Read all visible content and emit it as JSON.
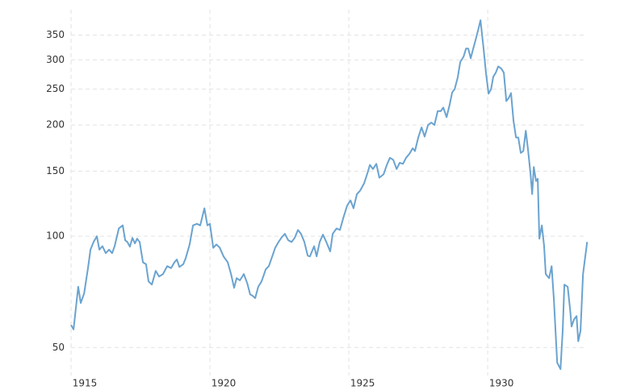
{
  "chart_data": {
    "type": "line",
    "log_scale": true,
    "grid": true,
    "x": [
      1915.0,
      1915.09,
      1915.26,
      1915.35,
      1915.47,
      1915.61,
      1915.7,
      1915.81,
      1915.93,
      1916.02,
      1916.13,
      1916.25,
      1916.37,
      1916.48,
      1916.57,
      1916.72,
      1916.86,
      1916.95,
      1917.03,
      1917.12,
      1917.21,
      1917.3,
      1917.38,
      1917.47,
      1917.59,
      1917.7,
      1917.79,
      1917.91,
      1918.05,
      1918.17,
      1918.31,
      1918.46,
      1918.6,
      1918.72,
      1918.81,
      1918.9,
      1919.04,
      1919.13,
      1919.27,
      1919.39,
      1919.53,
      1919.65,
      1919.8,
      1919.91,
      1920.0,
      1920.12,
      1920.23,
      1920.35,
      1920.49,
      1920.64,
      1920.76,
      1920.87,
      1920.96,
      1921.08,
      1921.22,
      1921.34,
      1921.45,
      1921.54,
      1921.63,
      1921.74,
      1921.86,
      1922.01,
      1922.12,
      1922.24,
      1922.35,
      1922.47,
      1922.59,
      1922.7,
      1922.82,
      1922.94,
      1923.05,
      1923.17,
      1923.28,
      1923.4,
      1923.52,
      1923.6,
      1923.75,
      1923.84,
      1923.95,
      1924.07,
      1924.19,
      1924.33,
      1924.42,
      1924.56,
      1924.68,
      1924.8,
      1924.94,
      1925.06,
      1925.17,
      1925.29,
      1925.41,
      1925.55,
      1925.67,
      1925.76,
      1925.87,
      1925.99,
      1926.1,
      1926.25,
      1926.37,
      1926.48,
      1926.6,
      1926.72,
      1926.83,
      1926.95,
      1927.06,
      1927.18,
      1927.3,
      1927.38,
      1927.5,
      1927.62,
      1927.73,
      1927.85,
      1927.97,
      1928.08,
      1928.2,
      1928.31,
      1928.4,
      1928.52,
      1928.63,
      1928.72,
      1928.81,
      1928.92,
      1929.01,
      1929.13,
      1929.22,
      1929.3,
      1929.39,
      1929.48,
      1929.56,
      1929.65,
      1929.74,
      1929.85,
      1929.94,
      1930.03,
      1930.12,
      1930.2,
      1930.29,
      1930.38,
      1930.49,
      1930.58,
      1930.67,
      1930.76,
      1930.84,
      1930.93,
      1931.02,
      1931.1,
      1931.19,
      1931.28,
      1931.37,
      1931.45,
      1931.54,
      1931.6,
      1931.66,
      1931.74,
      1931.8,
      1931.86,
      1931.95,
      1932.03,
      1932.09,
      1932.21,
      1932.3,
      1932.38,
      1932.5,
      1932.62,
      1932.7,
      1932.76,
      1932.88,
      1932.97,
      1933.02,
      1933.11,
      1933.2,
      1933.26,
      1933.34,
      1933.43,
      1933.58
    ],
    "series": [
      {
        "color": "#6aa3d0",
        "values": [
          57.5,
          56,
          73,
          66,
          70,
          82,
          92,
          96.5,
          100,
          92,
          94,
          90,
          92,
          90,
          94,
          105,
          107,
          97.5,
          96.5,
          93.7,
          99,
          95.6,
          98.5,
          96.5,
          85,
          84,
          75.5,
          74,
          80.6,
          77.8,
          79,
          83,
          82,
          85,
          86.5,
          82.6,
          84,
          87.3,
          95,
          107,
          108,
          107,
          119,
          107,
          108,
          93,
          95,
          93.2,
          88.2,
          85,
          79,
          72.5,
          77,
          76,
          79,
          74.7,
          69.6,
          69,
          68,
          73,
          75.5,
          81.4,
          83,
          88,
          93,
          96.5,
          99.5,
          101.5,
          97.5,
          96.5,
          99,
          104,
          101.5,
          96.5,
          88.6,
          88.2,
          94,
          88.2,
          96.5,
          101,
          96.5,
          91,
          101.5,
          105,
          104,
          112,
          121,
          125,
          119,
          130,
          133,
          139,
          148,
          156,
          152,
          157,
          144,
          147,
          156,
          163,
          161,
          152,
          158,
          157,
          163,
          167,
          173,
          170,
          185,
          197,
          186,
          200,
          203,
          200,
          218,
          218,
          223,
          210,
          227,
          245,
          250,
          269,
          296,
          306,
          322,
          322,
          303,
          322,
          339,
          360,
          384,
          322,
          275,
          243,
          250,
          270,
          277,
          288,
          284,
          277,
          232,
          237,
          244,
          205,
          185,
          185,
          168,
          170,
          193,
          172,
          148,
          130,
          154,
          141,
          143,
          98.5,
          107,
          94,
          79,
          77,
          83,
          68,
          45.5,
          43.7,
          55.5,
          74,
          73,
          63,
          57,
          59.6,
          60.8,
          52,
          55.5,
          79,
          96.5
        ]
      }
    ],
    "xlim": [
      1915,
      1933.6
    ],
    "ylim": [
      42,
      400
    ],
    "xticks": [
      1915,
      1920,
      1925,
      1930
    ],
    "yticks": [
      50,
      100,
      150,
      200,
      250,
      300,
      350
    ]
  }
}
